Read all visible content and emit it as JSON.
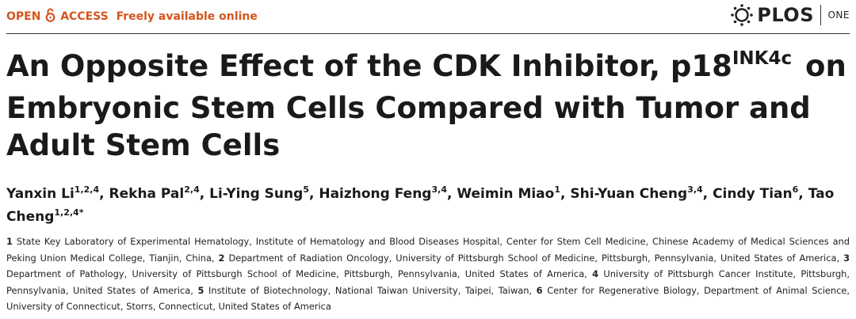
{
  "header": {
    "open": "OPEN",
    "access": "ACCESS",
    "freely": "Freely available online",
    "logo": "PLOS",
    "one": "ONE"
  },
  "title": {
    "part1": "An Opposite Effect of the CDK Inhibitor, p18",
    "sup": "INK4c",
    "part2": "on Embryonic Stem Cells Compared with Tumor and Adult Stem Cells"
  },
  "authors": [
    {
      "name": "Yanxin Li",
      "sup": "1,2,4"
    },
    {
      "name": "Rekha Pal",
      "sup": "2,4"
    },
    {
      "name": "Li-Ying Sung",
      "sup": "5"
    },
    {
      "name": "Haizhong Feng",
      "sup": "3,4"
    },
    {
      "name": "Weimin Miao",
      "sup": "1"
    },
    {
      "name": "Shi-Yuan Cheng",
      "sup": "3,4"
    },
    {
      "name": "Cindy Tian",
      "sup": "6"
    },
    {
      "name": "Tao Cheng",
      "sup": "1,2,4*"
    }
  ],
  "affiliations": [
    {
      "num": "1",
      "text": "State Key Laboratory of Experimental Hematology, Institute of Hematology and Blood Diseases Hospital, Center for Stem Cell Medicine, Chinese Academy of Medical Sciences and Peking Union Medical College, Tianjin, China,"
    },
    {
      "num": "2",
      "text": "Department of Radiation Oncology, University of Pittsburgh School of Medicine, Pittsburgh, Pennsylvania, United States of America,"
    },
    {
      "num": "3",
      "text": "Department of Pathology, University of Pittsburgh School of Medicine, Pittsburgh, Pennsylvania, United States of America,"
    },
    {
      "num": "4",
      "text": "University of Pittsburgh Cancer Institute, Pittsburgh, Pennsylvania, United States of America,"
    },
    {
      "num": "5",
      "text": "Institute of Biotechnology, National Taiwan University, Taipei, Taiwan,"
    },
    {
      "num": "6",
      "text": "Center for Regenerative Biology, Department of Animal Science, University of Connecticut, Storrs, Connecticut, United States of America"
    }
  ]
}
